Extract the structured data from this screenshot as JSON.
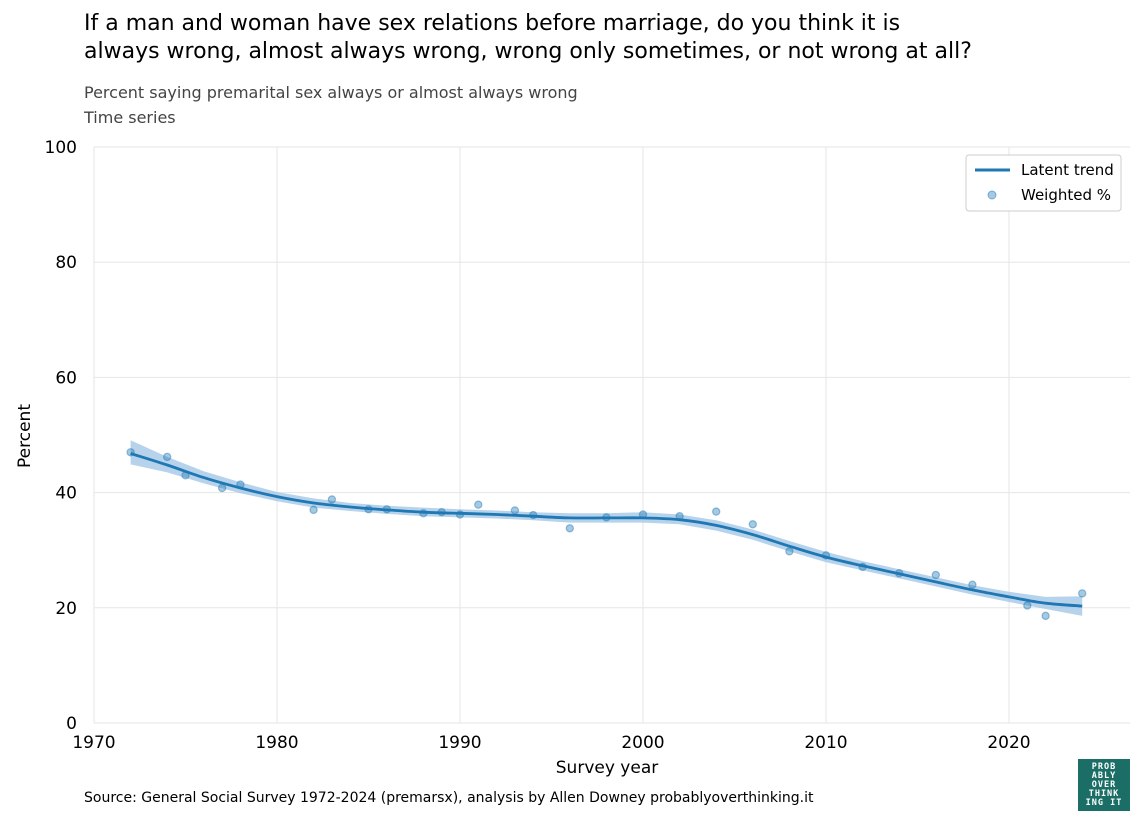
{
  "header": {
    "title_lines": [
      "If a man and woman have sex relations before marriage, do you think it is",
      "always wrong, almost always wrong, wrong only sometimes, or not wrong at all?"
    ],
    "subtitle_lines": [
      "Percent saying premarital sex always or almost always wrong",
      "Time series"
    ]
  },
  "footer": {
    "source": "Source: General Social Survey 1972-2024 (premarsx), analysis by Allen Downey probablyoverthinking.it",
    "logo_lines": [
      "PROB",
      "ABLY",
      "OVER",
      "THINK",
      "ING IT"
    ]
  },
  "colors": {
    "line": "#1f77b4",
    "band": "#9ec4e4",
    "points": "#1f77b4",
    "grid": "#e6e6e6",
    "logo_bg": "#1a6e66"
  },
  "chart_data": {
    "type": "scatter",
    "xlabel": "Survey year",
    "ylabel": "Percent",
    "xlim": [
      1970,
      2027
    ],
    "ylim": [
      0,
      100
    ],
    "xticks": [
      1970,
      1980,
      1990,
      2000,
      2010,
      2020
    ],
    "yticks": [
      0,
      20,
      40,
      60,
      80,
      100
    ],
    "grid": true,
    "legend_position": "top-right",
    "series": [
      {
        "name": "Latent trend",
        "kind": "line",
        "x": [
          1972,
          1974,
          1976,
          1978,
          1980,
          1982,
          1984,
          1986,
          1988,
          1990,
          1992,
          1994,
          1996,
          1998,
          2000,
          2002,
          2004,
          2006,
          2008,
          2010,
          2012,
          2014,
          2016,
          2018,
          2020,
          2022,
          2024
        ],
        "y": [
          46.8,
          44.8,
          42.6,
          40.8,
          39.3,
          38.2,
          37.5,
          37.0,
          36.6,
          36.4,
          36.2,
          35.9,
          35.6,
          35.6,
          35.6,
          35.3,
          34.3,
          32.7,
          30.7,
          28.8,
          27.3,
          25.9,
          24.5,
          23.1,
          21.9,
          20.8,
          20.3
        ],
        "band_low": [
          44.9,
          43.5,
          41.6,
          39.9,
          38.5,
          37.4,
          36.8,
          36.3,
          35.9,
          35.7,
          35.5,
          35.2,
          34.8,
          34.8,
          34.8,
          34.5,
          33.4,
          31.8,
          29.8,
          27.9,
          26.5,
          25.1,
          23.7,
          22.3,
          21.0,
          19.8,
          18.6
        ],
        "band_high": [
          49.1,
          46.2,
          43.7,
          41.8,
          40.1,
          39.0,
          38.2,
          37.7,
          37.4,
          37.1,
          36.9,
          36.6,
          36.4,
          36.4,
          36.6,
          36.2,
          35.2,
          33.6,
          31.6,
          29.7,
          28.1,
          26.7,
          25.3,
          23.9,
          22.8,
          21.9,
          22.0
        ]
      },
      {
        "name": "Weighted %",
        "kind": "scatter",
        "x": [
          1972,
          1974,
          1975,
          1977,
          1978,
          1982,
          1983,
          1985,
          1986,
          1988,
          1989,
          1990,
          1991,
          1993,
          1994,
          1996,
          1998,
          2000,
          2002,
          2004,
          2006,
          2008,
          2010,
          2012,
          2014,
          2016,
          2018,
          2021,
          2022,
          2024
        ],
        "y": [
          47.0,
          46.2,
          43.0,
          40.8,
          41.4,
          37.0,
          38.8,
          37.1,
          37.1,
          36.4,
          36.6,
          36.2,
          37.9,
          36.9,
          36.1,
          33.8,
          35.7,
          36.2,
          35.9,
          36.7,
          34.5,
          29.8,
          29.1,
          27.1,
          26.0,
          25.7,
          24.0,
          20.4,
          18.6,
          22.5
        ]
      }
    ]
  }
}
